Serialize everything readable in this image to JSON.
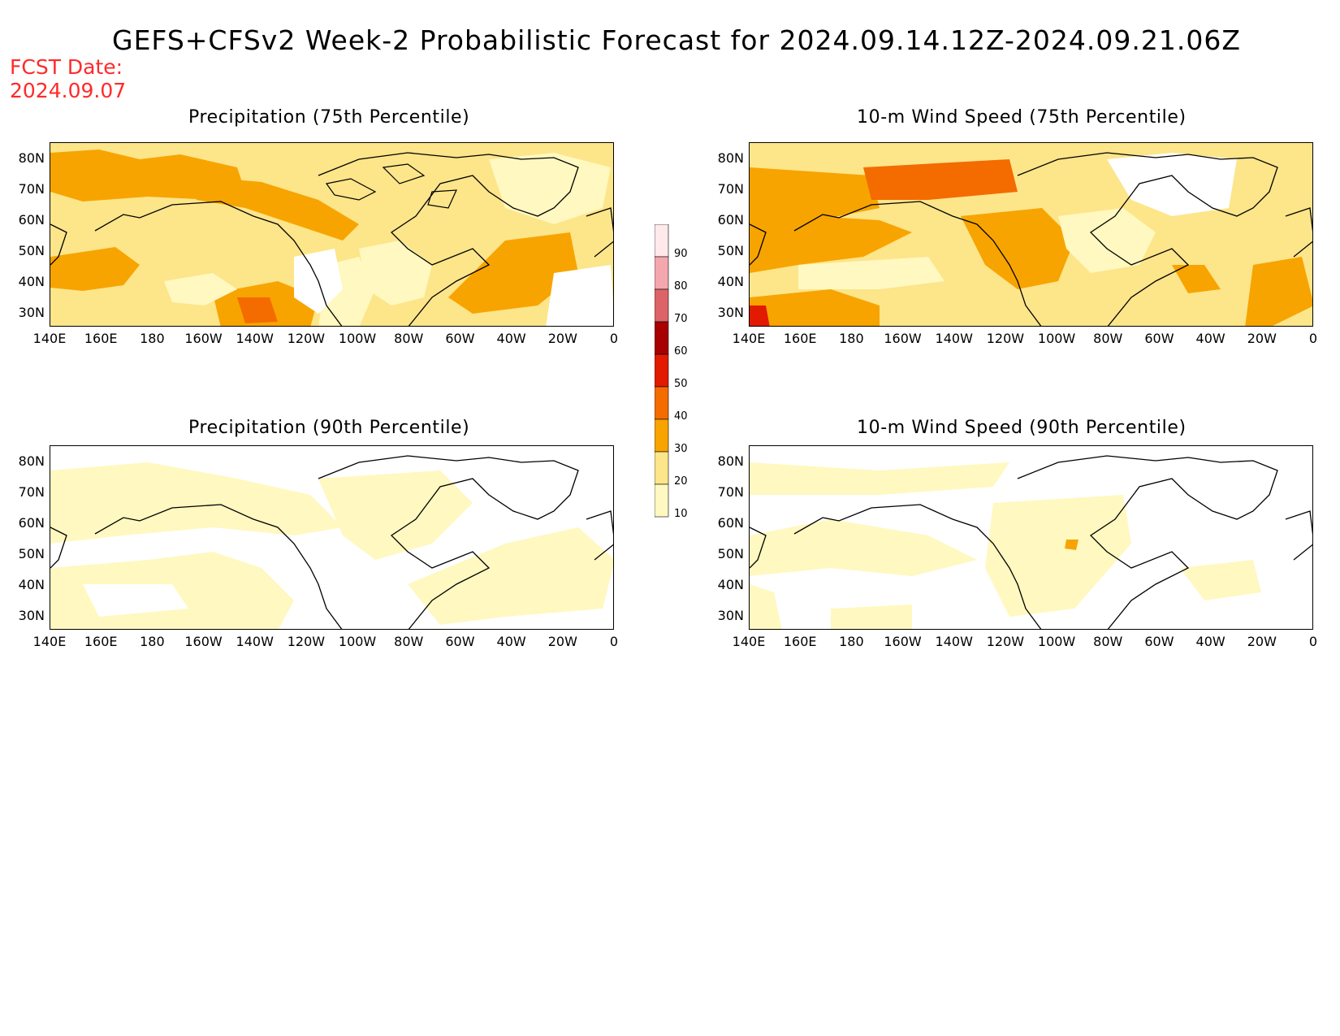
{
  "main_title": "GEFS+CFSv2 Week-2 Probabilistic Forecast for 2024.09.14.12Z-2024.09.21.06Z",
  "fcst_date_label": "FCST Date:",
  "fcst_date_value": "2024.09.07",
  "panels": [
    {
      "title": "Precipitation (75th Percentile)"
    },
    {
      "title": "10-m Wind Speed (75th Percentile)"
    },
    {
      "title": "Precipitation (90th Percentile)"
    },
    {
      "title": "10-m Wind Speed (90th Percentile)"
    }
  ],
  "lat_ticks": [
    "80N",
    "70N",
    "60N",
    "50N",
    "40N",
    "30N"
  ],
  "lon_ticks": [
    "140E",
    "160E",
    "180",
    "160W",
    "140W",
    "120W",
    "100W",
    "80W",
    "60W",
    "40W",
    "20W",
    "0"
  ],
  "colorbar": {
    "levels": [
      "90",
      "80",
      "70",
      "60",
      "50",
      "40",
      "30",
      "20",
      "10"
    ],
    "colors": [
      "#ffe9ea",
      "#f4a8ae",
      "#dc6468",
      "#a80000",
      "#e11a00",
      "#f46b00",
      "#f7a400",
      "#fde58a",
      "#fff8c0"
    ]
  }
}
